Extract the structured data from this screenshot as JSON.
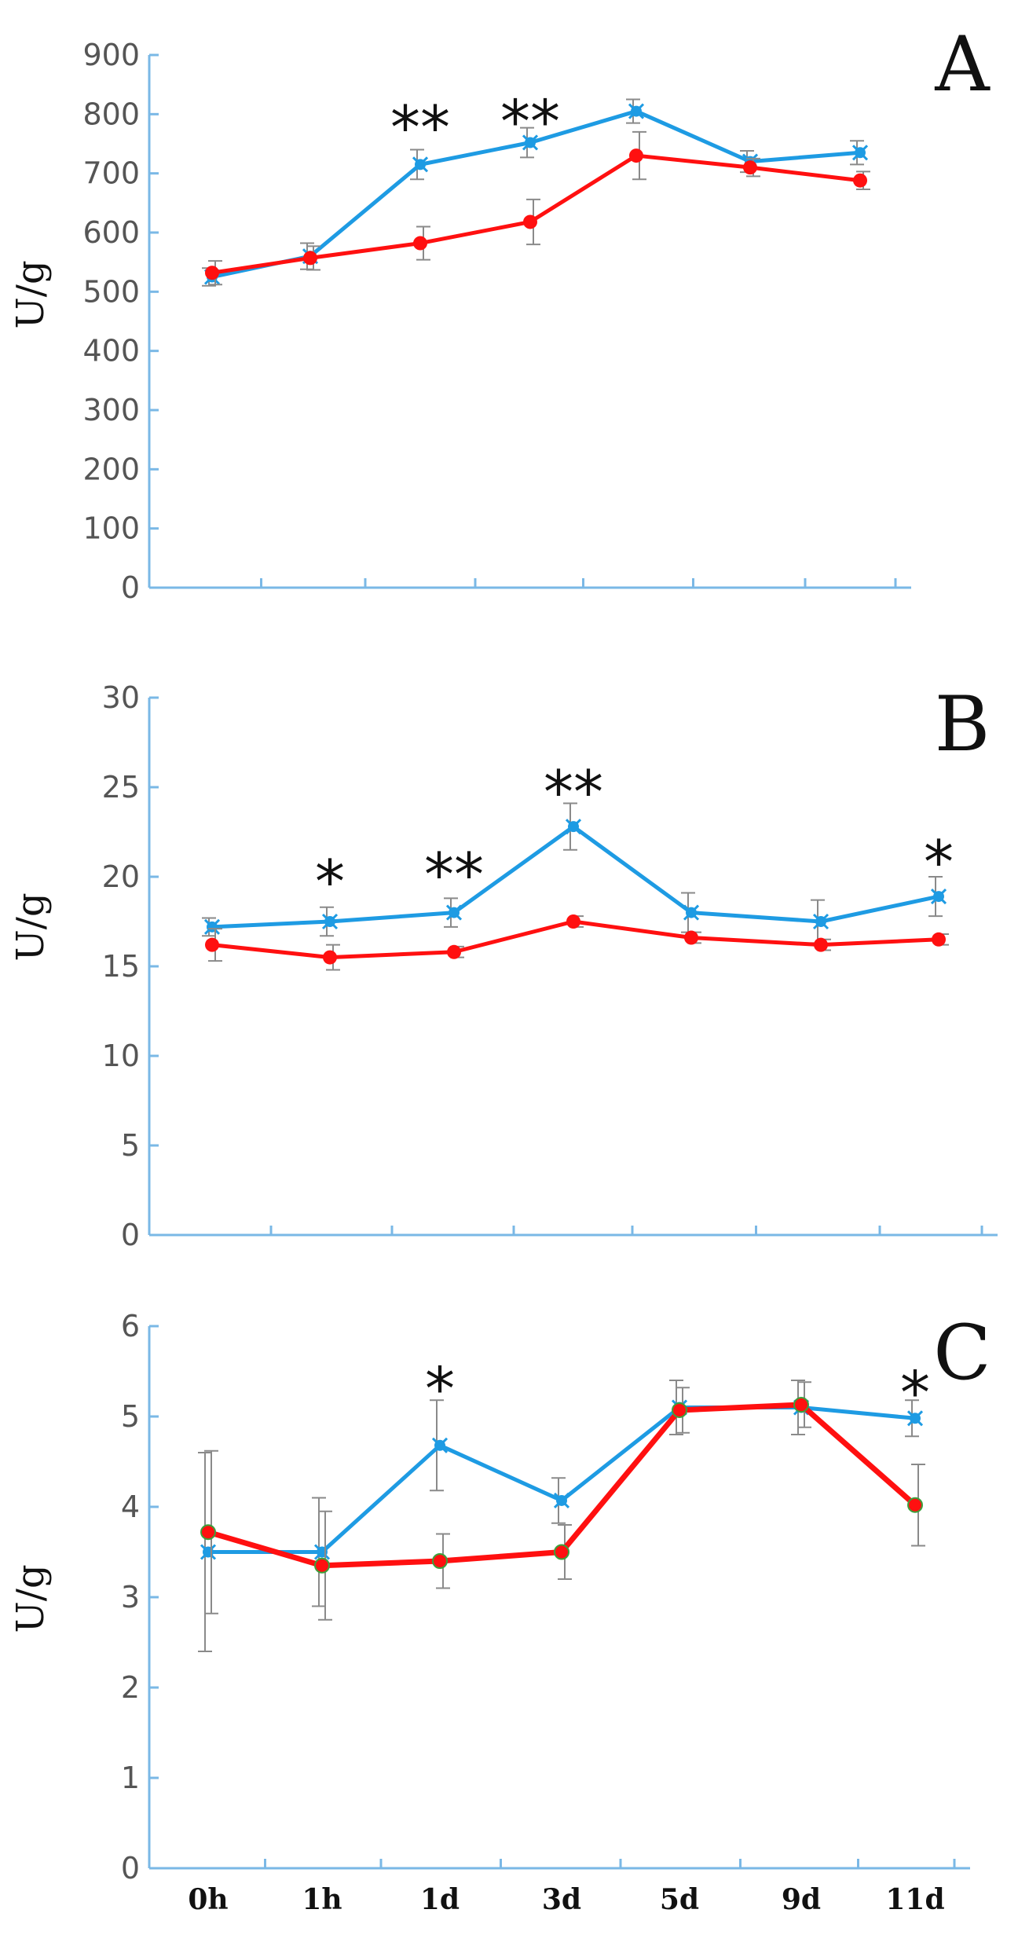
{
  "chart_data": [
    {
      "type": "line",
      "panel_letter": "A",
      "ylabel": "U/g",
      "ylim": [
        0,
        900
      ],
      "yticks": [
        0,
        100,
        200,
        300,
        400,
        500,
        600,
        700,
        800,
        900
      ],
      "categories": [
        "0h",
        "1h",
        "1d",
        "3d",
        "5d",
        "9d",
        "11d"
      ],
      "show_category_labels": false,
      "series": [
        {
          "name": "blue",
          "color": "#1e9be3",
          "marker": "x",
          "values": [
            525,
            560,
            715,
            752,
            805,
            720,
            735
          ],
          "errors": [
            15,
            22,
            25,
            25,
            20,
            18,
            20
          ]
        },
        {
          "name": "red",
          "color": "#ff1010",
          "marker": "circle",
          "values": [
            532,
            557,
            582,
            618,
            730,
            710,
            688
          ],
          "errors": [
            20,
            20,
            28,
            38,
            40,
            15,
            15
          ]
        }
      ],
      "annotations": [
        {
          "category": "1d",
          "text": "**",
          "y": 780
        },
        {
          "category": "3d",
          "text": "**",
          "y": 790
        }
      ]
    },
    {
      "type": "line",
      "panel_letter": "B",
      "ylabel": "U/g",
      "ylim": [
        0,
        30
      ],
      "yticks": [
        0,
        5,
        10,
        15,
        20,
        25,
        30
      ],
      "categories": [
        "0h",
        "1h",
        "1d",
        "3d",
        "5d",
        "9d",
        "11d"
      ],
      "show_category_labels": false,
      "series": [
        {
          "name": "blue",
          "color": "#1e9be3",
          "marker": "x",
          "values": [
            17.2,
            17.5,
            18.0,
            22.8,
            18.0,
            17.5,
            18.9
          ],
          "errors": [
            0.5,
            0.8,
            0.8,
            1.3,
            1.1,
            1.2,
            1.1
          ]
        },
        {
          "name": "red",
          "color": "#ff1010",
          "marker": "circle",
          "values": [
            16.2,
            15.5,
            15.8,
            17.5,
            16.6,
            16.2,
            16.5
          ],
          "errors": [
            0.9,
            0.7,
            0.3,
            0.3,
            0.3,
            0.3,
            0.3
          ]
        }
      ],
      "annotations": [
        {
          "category": "1h",
          "text": "*",
          "y": 19.8
        },
        {
          "category": "1d",
          "text": "**",
          "y": 20.2
        },
        {
          "category": "3d",
          "text": "**",
          "y": 24.8
        },
        {
          "category": "11d",
          "text": "*",
          "y": 20.9
        }
      ]
    },
    {
      "type": "line",
      "panel_letter": "C",
      "ylabel": "U/g",
      "ylim": [
        0,
        6
      ],
      "yticks": [
        0,
        1,
        2,
        3,
        4,
        5,
        6
      ],
      "categories": [
        "0h",
        "1h",
        "1d",
        "3d",
        "5d",
        "9d",
        "11d"
      ],
      "show_category_labels": true,
      "series": [
        {
          "name": "blue",
          "color": "#1e9be3",
          "marker": "x",
          "values": [
            3.5,
            3.5,
            4.68,
            4.07,
            5.1,
            5.1,
            4.98
          ],
          "errors": [
            1.1,
            0.6,
            0.5,
            0.25,
            0.3,
            0.3,
            0.2
          ]
        },
        {
          "name": "red",
          "color": "#ff1010",
          "marker": "circle",
          "values": [
            3.72,
            3.35,
            3.4,
            3.5,
            5.07,
            5.13,
            4.02
          ],
          "errors": [
            0.9,
            0.6,
            0.3,
            0.3,
            0.25,
            0.25,
            0.45
          ]
        }
      ],
      "annotations": [
        {
          "category": "1d",
          "text": "*",
          "y": 5.32
        },
        {
          "category": "11d",
          "text": "*",
          "y": 5.28
        }
      ]
    }
  ]
}
